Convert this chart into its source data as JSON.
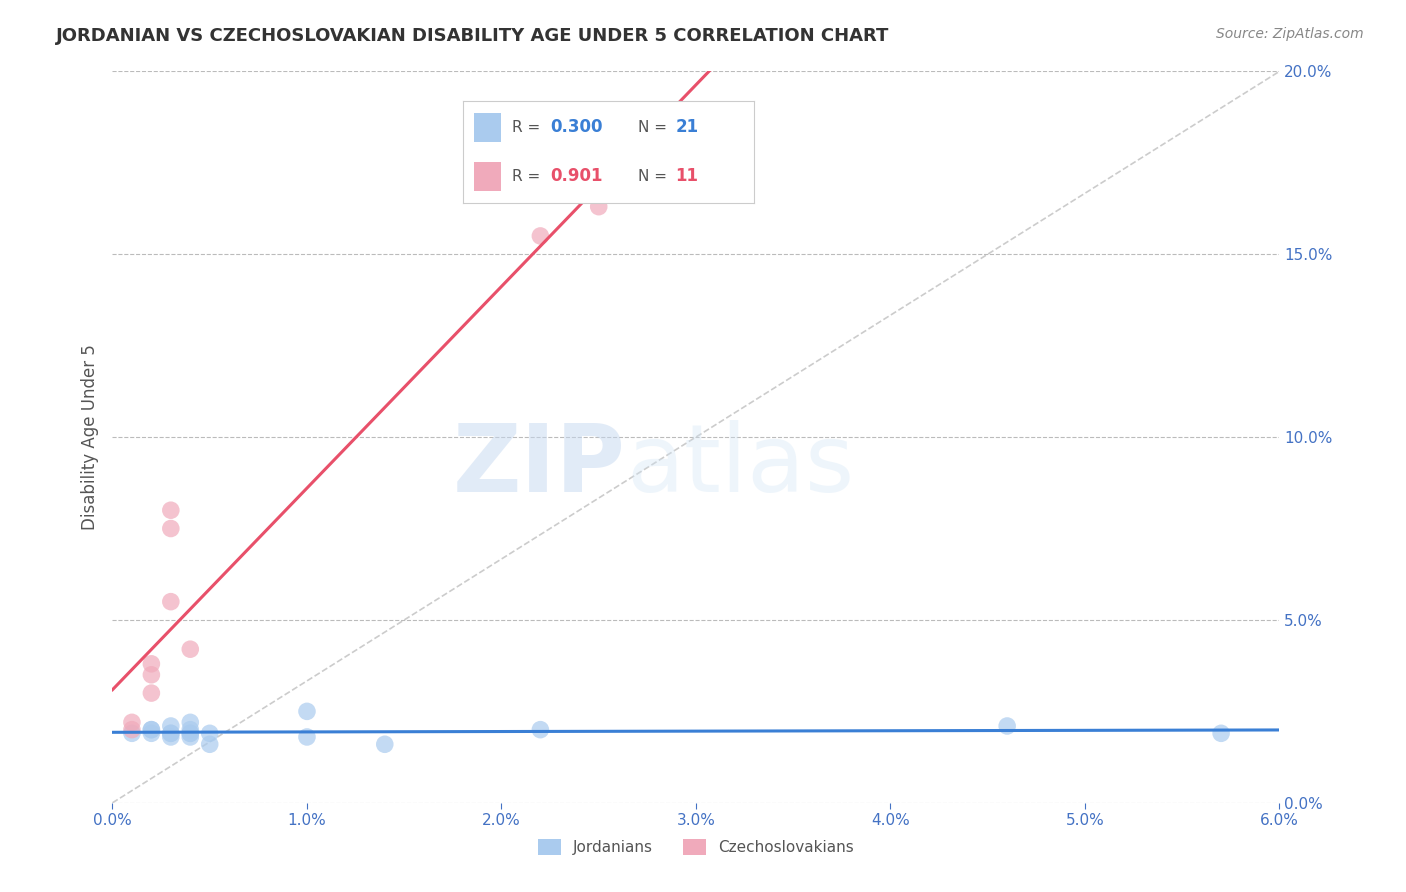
{
  "title": "JORDANIAN VS CZECHOSLOVAKIAN DISABILITY AGE UNDER 5 CORRELATION CHART",
  "source_text": "Source: ZipAtlas.com",
  "ylabel": "Disability Age Under 5",
  "xlim": [
    0.0,
    0.06
  ],
  "ylim": [
    0.0,
    0.2
  ],
  "xticks": [
    0.0,
    0.01,
    0.02,
    0.03,
    0.04,
    0.05,
    0.06
  ],
  "yticks": [
    0.0,
    0.05,
    0.1,
    0.15,
    0.2
  ],
  "background_color": "#ffffff",
  "grid_color": "#bbbbbb",
  "watermark_zip": "ZIP",
  "watermark_atlas": "atlas",
  "legend_r1": "0.300",
  "legend_n1": "21",
  "legend_r2": "0.901",
  "legend_n2": "11",
  "blue_color": "#aacbee",
  "pink_color": "#f0aabb",
  "blue_line_color": "#3a7fd5",
  "pink_line_color": "#e8506a",
  "title_color": "#333333",
  "axis_label_color": "#555555",
  "tick_color": "#4472c4",
  "jordanian_x": [
    0.001,
    0.002,
    0.002,
    0.002,
    0.003,
    0.003,
    0.003,
    0.003,
    0.004,
    0.004,
    0.004,
    0.004,
    0.004,
    0.005,
    0.005,
    0.01,
    0.01,
    0.014,
    0.022,
    0.046,
    0.057
  ],
  "jordanian_y": [
    0.019,
    0.02,
    0.019,
    0.02,
    0.019,
    0.018,
    0.019,
    0.021,
    0.018,
    0.019,
    0.02,
    0.019,
    0.022,
    0.019,
    0.016,
    0.025,
    0.018,
    0.016,
    0.02,
    0.021,
    0.019
  ],
  "czech_x": [
    0.001,
    0.001,
    0.002,
    0.002,
    0.002,
    0.003,
    0.003,
    0.003,
    0.004,
    0.022,
    0.025
  ],
  "czech_y": [
    0.02,
    0.022,
    0.03,
    0.035,
    0.038,
    0.055,
    0.075,
    0.08,
    0.042,
    0.155,
    0.163
  ],
  "diag_line_color": "#cccccc"
}
